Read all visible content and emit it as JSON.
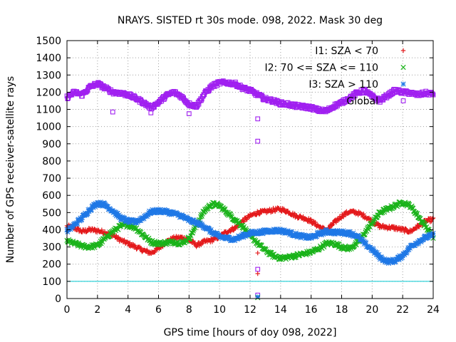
{
  "chart_data": {
    "type": "scatter",
    "title": "NRAYS. SISTED rt 30s mode. 098, 2022. Mask 30 deg",
    "xlabel": "GPS time [hours of doy 098, 2022]",
    "ylabel": "Number of GPS receiver-satellite rays",
    "xlim": [
      0,
      24
    ],
    "ylim": [
      0,
      1500
    ],
    "xticks": [
      "0",
      "2",
      "4",
      "6",
      "8",
      "10",
      "12",
      "14",
      "16",
      "18",
      "20",
      "22",
      "24"
    ],
    "yticks": [
      "0",
      "100",
      "200",
      "300",
      "400",
      "500",
      "600",
      "700",
      "800",
      "900",
      "1000",
      "1100",
      "1200",
      "1300",
      "1400",
      "1500"
    ],
    "grid": true,
    "legend_position": "top-right",
    "reference_line": {
      "y": 100,
      "color": "#00c8d0"
    },
    "series": [
      {
        "name": "I1: SZA < 70",
        "marker": "+",
        "color": "#e41a1c",
        "x": [
          0,
          0.5,
          1,
          1.5,
          2,
          2.5,
          3,
          3.5,
          4,
          4.5,
          5,
          5.5,
          6,
          6.5,
          7,
          7.5,
          8,
          8.5,
          9,
          9.5,
          10,
          10.5,
          11,
          11.5,
          12,
          12.5,
          13,
          13.5,
          14,
          14.5,
          15,
          15.5,
          16,
          16.5,
          17,
          17.5,
          18,
          18.5,
          19,
          19.5,
          20,
          20.5,
          21,
          21.5,
          22,
          22.5,
          23,
          23.5,
          24
        ],
        "values": [
          420,
          410,
          390,
          400,
          395,
          385,
          370,
          340,
          320,
          300,
          280,
          265,
          290,
          330,
          350,
          355,
          340,
          310,
          330,
          340,
          360,
          390,
          410,
          450,
          480,
          500,
          505,
          515,
          520,
          505,
          480,
          470,
          450,
          420,
          395,
          440,
          480,
          505,
          500,
          480,
          450,
          420,
          415,
          410,
          400,
          390,
          420,
          450,
          460
        ]
      },
      {
        "name": "I2: 70 <= SZA <= 110",
        "marker": "x",
        "color": "#1ab31a",
        "x": [
          0,
          0.5,
          1,
          1.5,
          2,
          2.5,
          3,
          3.5,
          4,
          4.5,
          5,
          5.5,
          6,
          6.5,
          7,
          7.5,
          8,
          8.5,
          9,
          9.5,
          10,
          10.5,
          11,
          11.5,
          12,
          12.5,
          13,
          13.5,
          14,
          14.5,
          15,
          15.5,
          16,
          16.5,
          17,
          17.5,
          18,
          18.5,
          19,
          19.5,
          20,
          20.5,
          21,
          21.5,
          22,
          22.5,
          23,
          23.5,
          24
        ],
        "values": [
          335,
          320,
          305,
          300,
          310,
          350,
          390,
          420,
          430,
          410,
          370,
          330,
          320,
          325,
          330,
          320,
          350,
          430,
          510,
          550,
          540,
          500,
          460,
          420,
          370,
          320,
          280,
          250,
          235,
          240,
          250,
          260,
          270,
          290,
          320,
          320,
          300,
          290,
          320,
          380,
          440,
          500,
          520,
          540,
          560,
          540,
          480,
          420,
          360
        ]
      },
      {
        "name": "I3: SZA > 110",
        "marker": "*",
        "color": "#1f78e6",
        "x": [
          0,
          0.5,
          1,
          1.5,
          2,
          2.5,
          3,
          3.5,
          4,
          4.5,
          5,
          5.5,
          6,
          6.5,
          7,
          7.5,
          8,
          8.5,
          9,
          9.5,
          10,
          10.5,
          11,
          11.5,
          12,
          12.5,
          13,
          13.5,
          14,
          14.5,
          15,
          15.5,
          16,
          16.5,
          17,
          17.5,
          18,
          18.5,
          19,
          19.5,
          20,
          20.5,
          21,
          21.5,
          22,
          22.5,
          23,
          23.5,
          24
        ],
        "values": [
          390,
          430,
          470,
          520,
          555,
          545,
          510,
          470,
          450,
          445,
          470,
          505,
          510,
          505,
          495,
          480,
          455,
          440,
          420,
          385,
          360,
          350,
          345,
          365,
          380,
          385,
          390,
          395,
          395,
          385,
          370,
          360,
          355,
          375,
          390,
          385,
          385,
          380,
          365,
          320,
          285,
          240,
          215,
          220,
          250,
          300,
          330,
          355,
          370
        ]
      },
      {
        "name": "Global",
        "marker": "square",
        "color": "#a020f0",
        "x": [
          0,
          0.5,
          1,
          1.5,
          2,
          2.5,
          3,
          3.5,
          4,
          4.5,
          5,
          5.5,
          6,
          6.5,
          7,
          7.5,
          8,
          8.5,
          9,
          9.5,
          10,
          10.5,
          11,
          11.5,
          12,
          12.5,
          13,
          13.5,
          14,
          14.5,
          15,
          15.5,
          16,
          16.5,
          17,
          17.5,
          18,
          18.5,
          19,
          19.5,
          20,
          20.5,
          21,
          21.5,
          22,
          22.5,
          23,
          23.5,
          24
        ],
        "values": [
          1170,
          1200,
          1185,
          1230,
          1250,
          1225,
          1200,
          1195,
          1185,
          1165,
          1140,
          1110,
          1140,
          1180,
          1200,
          1175,
          1130,
          1120,
          1190,
          1235,
          1255,
          1255,
          1250,
          1225,
          1210,
          1185,
          1160,
          1150,
          1135,
          1130,
          1120,
          1115,
          1110,
          1095,
          1090,
          1120,
          1140,
          1165,
          1195,
          1210,
          1175,
          1150,
          1180,
          1210,
          1200,
          1195,
          1185,
          1195,
          1190
        ]
      }
    ],
    "outliers": {
      "Global": {
        "x": [
          12.5,
          12.5,
          12.5,
          12.5,
          3,
          5.5,
          8
        ],
        "values": [
          1045,
          915,
          170,
          20,
          1085,
          1080,
          1075
        ]
      },
      "I1: SZA < 70": {
        "x": [
          12.5,
          12.5
        ],
        "values": [
          265,
          145
        ]
      },
      "I2: 70 <= SZA <= 110": {
        "x": [
          12.5
        ],
        "values": [
          5
        ]
      },
      "I3: SZA > 110": {
        "x": [
          12.5
        ],
        "values": [
          10
        ]
      }
    }
  }
}
